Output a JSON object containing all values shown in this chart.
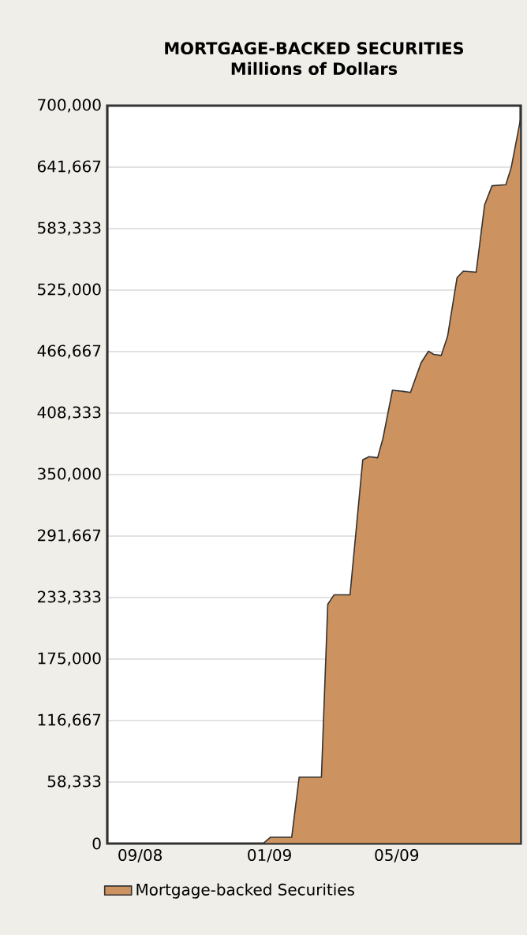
{
  "chart_data": {
    "type": "area",
    "title": "MORTGAGE-BACKED SECURITIES",
    "subtitle": "Millions of Dollars",
    "x": [
      "2008-08-01",
      "2008-12-26",
      "2009-01-02",
      "2009-01-22",
      "2009-01-29",
      "2009-02-19",
      "2009-02-25",
      "2009-03-03",
      "2009-03-18",
      "2009-03-30",
      "2009-04-05",
      "2009-04-13",
      "2009-04-18",
      "2009-04-27",
      "2009-05-07",
      "2009-05-14",
      "2009-05-24",
      "2009-05-31",
      "2009-06-05",
      "2009-06-12",
      "2009-06-18",
      "2009-06-27",
      "2009-07-03",
      "2009-07-15",
      "2009-07-23",
      "2009-07-30",
      "2009-08-12",
      "2009-08-17",
      "2009-08-26"
    ],
    "series": [
      {
        "name": "Mortgage-backed Securities",
        "color": "#cc9360",
        "values": [
          0,
          0,
          6000,
          6000,
          63000,
          63000,
          227000,
          236000,
          236000,
          364000,
          367000,
          366000,
          384000,
          430000,
          429000,
          428000,
          456000,
          467000,
          464000,
          463000,
          481000,
          537000,
          543000,
          542000,
          606000,
          624000,
          625000,
          641000,
          688000
        ]
      }
    ],
    "xlim": [
      "2008-08-01",
      "2009-08-26"
    ],
    "xticks": [
      {
        "value": "2008-09-01",
        "label": "09/08"
      },
      {
        "value": "2009-01-01",
        "label": "01/09"
      },
      {
        "value": "2009-05-01",
        "label": "05/09"
      }
    ],
    "ylim": [
      0,
      700000
    ],
    "yticks": [
      0,
      {
        "value": 58333.33,
        "label": "58,333"
      },
      {
        "value": 116666.67,
        "label": "116,667"
      },
      {
        "value": 175000,
        "label": "175,000"
      },
      {
        "value": 233333.33,
        "label": "233,333"
      },
      {
        "value": 291666.67,
        "label": "291,667"
      },
      {
        "value": 350000,
        "label": "350,000"
      },
      {
        "value": 408333.33,
        "label": "408,333"
      },
      {
        "value": 466666.67,
        "label": "466,667"
      },
      {
        "value": 525000,
        "label": "525,000"
      },
      {
        "value": 583333.33,
        "label": "583,333"
      },
      {
        "value": 641666.67,
        "label": "641,667"
      },
      {
        "value": 700000,
        "label": "700,000"
      }
    ],
    "grid": "y",
    "legend": "bottom",
    "marker": "none",
    "line_style": "solid"
  }
}
